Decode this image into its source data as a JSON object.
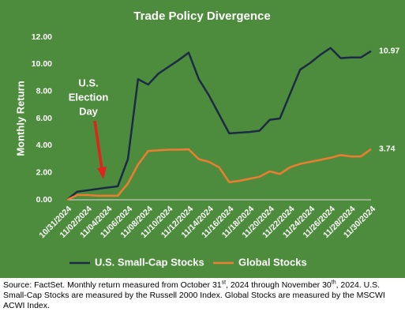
{
  "chart_data": {
    "type": "line",
    "title": "Trade Policy Divergence",
    "y_label": "Monthly Return",
    "annotation": [
      "U.S.",
      "Election",
      "Day"
    ],
    "categories": [
      "10/31/2024",
      null,
      "11/02/2024",
      null,
      "11/04/2024",
      null,
      "11/06/2024",
      null,
      "11/08/2024",
      null,
      "11/10/2024",
      null,
      "11/12/2024",
      null,
      "11/14/2024",
      null,
      "11/16/2024",
      null,
      "11/18/2024",
      null,
      "11/20/2024",
      null,
      "11/22/2024",
      null,
      "11/24/2024",
      null,
      "11/26/2024",
      null,
      "11/28/2024",
      null,
      "11/30/2024"
    ],
    "series": [
      {
        "name": "U.S. Small-Cap Stocks",
        "color": "#1c2b45",
        "values": [
          0,
          0.6,
          0.7,
          0.8,
          0.9,
          1.0,
          3.0,
          8.9,
          8.5,
          9.3,
          9.8,
          10.3,
          10.85,
          8.9,
          7.7,
          6.3,
          4.9,
          4.95,
          5.0,
          5.1,
          5.9,
          6.0,
          7.8,
          9.6,
          10.1,
          10.7,
          11.2,
          10.45,
          10.5,
          10.5,
          10.97
        ]
      },
      {
        "name": "Global Stocks",
        "color": "#ed7d31",
        "values": [
          0,
          0.35,
          0.35,
          0.3,
          0.3,
          0.3,
          1.2,
          2.6,
          3.6,
          3.65,
          3.7,
          3.7,
          3.72,
          3.0,
          2.8,
          2.4,
          1.3,
          1.4,
          1.55,
          1.7,
          2.1,
          1.9,
          2.4,
          2.65,
          2.8,
          2.95,
          3.1,
          3.3,
          3.2,
          3.2,
          3.74
        ]
      }
    ],
    "ylim": [
      0,
      12
    ],
    "yticks": [
      {
        "value": 0,
        "label": "0.00"
      },
      {
        "value": 2,
        "label": "2.00"
      },
      {
        "value": 4,
        "label": "4.00"
      },
      {
        "value": 6,
        "label": "6.00"
      },
      {
        "value": 8,
        "label": "8.00"
      },
      {
        "value": 10,
        "label": "10.00"
      },
      {
        "value": 12,
        "label": "12.00"
      }
    ],
    "legend": "bottom",
    "background": "#4e8c3d"
  },
  "source": [
    "Source: FactSet. Monthly return measured from October 31",
    "st",
    ", 2024 through November 30",
    "th",
    ", 2024. U.S. Small-Cap Stocks are measured by the Russell 2000 Index. Global Stocks are measured by the MSCWI ACWI Index."
  ]
}
